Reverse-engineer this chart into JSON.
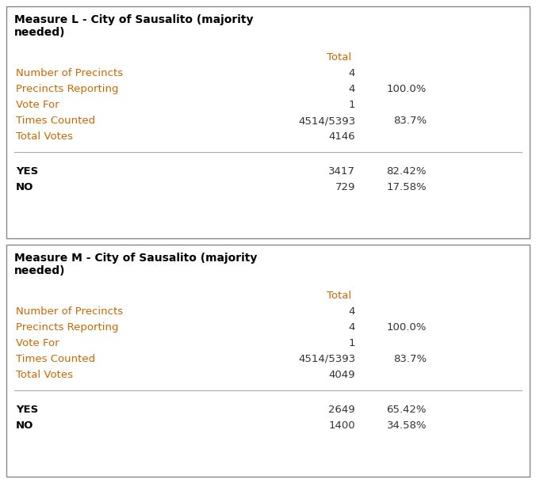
{
  "measures": [
    {
      "title": "Measure L - City of Sausalito (majority\nneeded)",
      "header_col": "Total",
      "rows": [
        {
          "label": "Number of Precincts",
          "col1": "4",
          "col2": ""
        },
        {
          "label": "Precincts Reporting",
          "col1": "4",
          "col2": "100.0%"
        },
        {
          "label": "Vote For",
          "col1": "1",
          "col2": ""
        },
        {
          "label": "Times Counted",
          "col1": "4514/5393",
          "col2": "83.7%"
        },
        {
          "label": "Total Votes",
          "col1": "4146",
          "col2": ""
        }
      ],
      "candidates": [
        {
          "name": "YES",
          "votes": "3417",
          "pct": "82.42%"
        },
        {
          "name": "NO",
          "votes": "729",
          "pct": "17.58%"
        }
      ]
    },
    {
      "title": "Measure M - City of Sausalito (majority\nneeded)",
      "header_col": "Total",
      "rows": [
        {
          "label": "Number of Precincts",
          "col1": "4",
          "col2": ""
        },
        {
          "label": "Precincts Reporting",
          "col1": "4",
          "col2": "100.0%"
        },
        {
          "label": "Vote For",
          "col1": "1",
          "col2": ""
        },
        {
          "label": "Times Counted",
          "col1": "4514/5393",
          "col2": "83.7%"
        },
        {
          "label": "Total Votes",
          "col1": "4049",
          "col2": ""
        }
      ],
      "candidates": [
        {
          "name": "YES",
          "votes": "2649",
          "pct": "65.42%"
        },
        {
          "name": "NO",
          "votes": "1400",
          "pct": "34.58%"
        }
      ]
    }
  ],
  "bg_color": "#ffffff",
  "border_color": "#888888",
  "label_color": "#cc6600",
  "header_color": "#cc6600",
  "value_color": "#333333",
  "title_color": "#000000",
  "candidate_name_color": "#000000",
  "font_size": 9.5,
  "title_font_size": 10,
  "line_color": "#aaaaaa",
  "fig_w": 6.76,
  "fig_h": 6.1,
  "dpi": 100
}
